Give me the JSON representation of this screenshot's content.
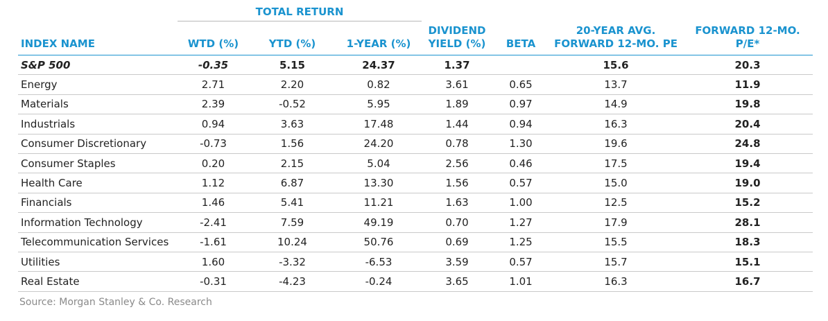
{
  "header": {
    "group_label": "TOTAL RETURN",
    "columns": {
      "index_name": "INDEX NAME",
      "wtd": "WTD (%)",
      "ytd": "YTD (%)",
      "one_year": "1-YEAR (%)",
      "dividend_line1": "DIVIDEND",
      "dividend_line2": "YIELD (%)",
      "beta": "BETA",
      "avg_line1": "20-YEAR AVG.",
      "avg_line2": "FORWARD 12-MO. PE",
      "fwd_line1": "FORWARD 12-MO.",
      "fwd_line2": "P/E*"
    }
  },
  "rows": [
    {
      "name": "S&P 500",
      "wtd": "-0.35",
      "ytd": "5.15",
      "one_year": "24.37",
      "dividend": "1.37",
      "beta": "",
      "avg_pe": "15.6",
      "fwd_pe": "20.3"
    },
    {
      "name": "Energy",
      "wtd": "2.71",
      "ytd": "2.20",
      "one_year": "0.82",
      "dividend": "3.61",
      "beta": "0.65",
      "avg_pe": "13.7",
      "fwd_pe": "11.9"
    },
    {
      "name": "Materials",
      "wtd": "2.39",
      "ytd": "-0.52",
      "one_year": "5.95",
      "dividend": "1.89",
      "beta": "0.97",
      "avg_pe": "14.9",
      "fwd_pe": "19.8"
    },
    {
      "name": "Industrials",
      "wtd": "0.94",
      "ytd": "3.63",
      "one_year": "17.48",
      "dividend": "1.44",
      "beta": "0.94",
      "avg_pe": "16.3",
      "fwd_pe": "20.4"
    },
    {
      "name": "Consumer Discretionary",
      "wtd": "-0.73",
      "ytd": "1.56",
      "one_year": "24.20",
      "dividend": "0.78",
      "beta": "1.30",
      "avg_pe": "19.6",
      "fwd_pe": "24.8"
    },
    {
      "name": "Consumer Staples",
      "wtd": "0.20",
      "ytd": "2.15",
      "one_year": "5.04",
      "dividend": "2.56",
      "beta": "0.46",
      "avg_pe": "17.5",
      "fwd_pe": "19.4"
    },
    {
      "name": "Health Care",
      "wtd": "1.12",
      "ytd": "6.87",
      "one_year": "13.30",
      "dividend": "1.56",
      "beta": "0.57",
      "avg_pe": "15.0",
      "fwd_pe": "19.0"
    },
    {
      "name": "Financials",
      "wtd": "1.46",
      "ytd": "5.41",
      "one_year": "11.21",
      "dividend": "1.63",
      "beta": "1.00",
      "avg_pe": "12.5",
      "fwd_pe": "15.2"
    },
    {
      "name": "Information Technology",
      "wtd": "-2.41",
      "ytd": "7.59",
      "one_year": "49.19",
      "dividend": "0.70",
      "beta": "1.27",
      "avg_pe": "17.9",
      "fwd_pe": "28.1"
    },
    {
      "name": "Telecommunication Services",
      "wtd": "-1.61",
      "ytd": "10.24",
      "one_year": "50.76",
      "dividend": "0.69",
      "beta": "1.25",
      "avg_pe": "15.5",
      "fwd_pe": "18.3"
    },
    {
      "name": "Utilities",
      "wtd": "1.60",
      "ytd": "-3.32",
      "one_year": "-6.53",
      "dividend": "3.59",
      "beta": "0.57",
      "avg_pe": "15.7",
      "fwd_pe": "15.1"
    },
    {
      "name": "Real Estate",
      "wtd": "-0.31",
      "ytd": "-4.23",
      "one_year": "-0.24",
      "dividend": "3.65",
      "beta": "1.01",
      "avg_pe": "16.3",
      "fwd_pe": "16.7"
    }
  ],
  "footer": {
    "source": "Source: Morgan Stanley & Co. Research"
  },
  "colors": {
    "header_blue": "#1a93cf",
    "source_gray": "#8a8a8a"
  }
}
